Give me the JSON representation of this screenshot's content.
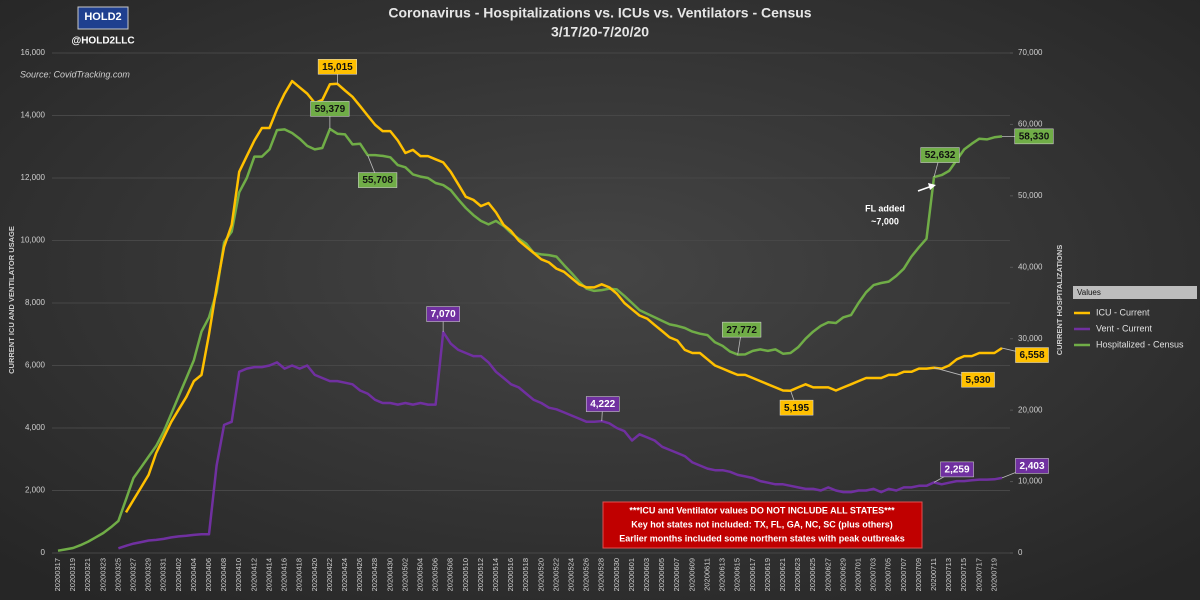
{
  "branding": {
    "logo": "HOLD2",
    "handle": "@HOLD2LLC"
  },
  "chart_data": {
    "type": "line",
    "title": "Coronavirus - Hospitalizations vs. ICUs vs. Ventilators - Census",
    "subtitle": "3/17/20-7/20/20",
    "source": "Source: CovidTracking.com",
    "y_label": "CURRENT ICU AND VENTILATOR USAGE",
    "y2_label": "CURRENT HOSPITALIZATIONS",
    "legend_title": "Values",
    "legend": "right",
    "grid": true,
    "annotations": [
      "FL added",
      "~7,000"
    ],
    "note": [
      "***ICU and Ventilator values DO NOT INCLUDE ALL STATES***",
      "Key hot states not included: TX, FL, GA, NC, SC (plus others)",
      "Earlier months included some northern states with peak outbreaks"
    ],
    "categories": [
      "20200317",
      null,
      "20200319",
      null,
      "20200321",
      null,
      "20200323",
      null,
      "20200325",
      null,
      "20200327",
      null,
      "20200329",
      null,
      "20200331",
      null,
      "20200402",
      null,
      "20200404",
      null,
      "20200406",
      null,
      "20200408",
      null,
      "20200410",
      null,
      "20200412",
      null,
      "20200414",
      null,
      "20200416",
      null,
      "20200418",
      null,
      "20200420",
      null,
      "20200422",
      null,
      "20200424",
      null,
      "20200426",
      null,
      "20200428",
      null,
      "20200430",
      null,
      "20200502",
      null,
      "20200504",
      null,
      "20200506",
      null,
      "20200508",
      null,
      "20200510",
      null,
      "20200512",
      null,
      "20200514",
      null,
      "20200516",
      null,
      "20200518",
      null,
      "20200520",
      null,
      "20200522",
      null,
      "20200524",
      null,
      "20200526",
      null,
      "20200528",
      null,
      "20200530",
      null,
      "20200601",
      null,
      "20200603",
      null,
      "20200605",
      null,
      "20200607",
      null,
      "20200609",
      null,
      "20200611",
      null,
      "20200613",
      null,
      "20200615",
      null,
      "20200617",
      null,
      "20200619",
      null,
      "20200621",
      null,
      "20200623",
      null,
      "20200625",
      null,
      "20200627",
      null,
      "20200629",
      null,
      "20200701",
      null,
      "20200703",
      null,
      "20200705",
      null,
      "20200707",
      null,
      "20200709",
      null,
      "20200711",
      null,
      "20200713",
      null,
      "20200715",
      null,
      "20200717",
      null,
      "20200719",
      null
    ],
    "ylim": [
      0,
      16000
    ],
    "yticks": [
      0,
      {
        "value": 2000,
        "label": "2,000"
      },
      {
        "value": 4000,
        "label": "4,000"
      },
      {
        "value": 6000,
        "label": "6,000"
      },
      {
        "value": 8000,
        "label": "8,000"
      },
      {
        "value": 10000,
        "label": "10,000"
      },
      {
        "value": 12000,
        "label": "12,000"
      },
      {
        "value": 14000,
        "label": "14,000"
      },
      {
        "value": 16000,
        "label": "16,000"
      }
    ],
    "y2lim": [
      0,
      70000
    ],
    "y2ticks": [
      0,
      {
        "value": 10000,
        "label": "10,000"
      },
      {
        "value": 20000,
        "label": "20,000"
      },
      {
        "value": 30000,
        "label": "30,000"
      },
      {
        "value": 40000,
        "label": "40,000"
      },
      {
        "value": 50000,
        "label": "50,000"
      },
      {
        "value": 60000,
        "label": "60,000"
      },
      {
        "value": 70000,
        "label": "70,000"
      }
    ],
    "series": [
      {
        "name": "ICU - Current",
        "color": "#ffc000",
        "label_text": "#111111",
        "values": [
          null,
          null,
          null,
          null,
          null,
          null,
          null,
          null,
          null,
          1300,
          1700,
          2100,
          2500,
          3200,
          3700,
          4200,
          4600,
          5000,
          5500,
          5700,
          7000,
          8500,
          9800,
          10500,
          12200,
          12700,
          13200,
          13600,
          13600,
          14200,
          14700,
          15100,
          14900,
          14700,
          14400,
          14500,
          15000,
          15015,
          14800,
          14600,
          14300,
          14000,
          13700,
          13500,
          13500,
          13200,
          12800,
          12900,
          12700,
          12700,
          12600,
          12500,
          12200,
          11800,
          11400,
          11300,
          11100,
          11200,
          10900,
          10500,
          10300,
          10000,
          9800,
          9600,
          9400,
          9300,
          9100,
          9000,
          8800,
          8600,
          8500,
          8500,
          8600,
          8500,
          8300,
          8000,
          7800,
          7600,
          7500,
          7300,
          7100,
          6900,
          6800,
          6500,
          6400,
          6400,
          6200,
          6000,
          5900,
          5800,
          5700,
          5700,
          5600,
          5500,
          5400,
          5300,
          5200,
          5195,
          5300,
          5400,
          5300,
          5300,
          5300,
          5200,
          5300,
          5400,
          5500,
          5600,
          5600,
          5600,
          5700,
          5700,
          5800,
          5800,
          5900,
          5900,
          5930,
          5900,
          6000,
          6200,
          6300,
          6300,
          6400,
          6400,
          6400,
          6558
        ],
        "value_labels": {
          "37": "15,015",
          "97": "5,195",
          "116": "5,930",
          "125": "6,558"
        }
      },
      {
        "name": "Vent - Current",
        "color": "#7030a0",
        "label_text": "#ffffff",
        "values": [
          null,
          null,
          null,
          null,
          null,
          null,
          null,
          null,
          150,
          230,
          300,
          350,
          400,
          420,
          450,
          500,
          530,
          550,
          580,
          600,
          600,
          2800,
          4100,
          4200,
          5800,
          5900,
          5950,
          5950,
          6000,
          6100,
          5900,
          6000,
          5900,
          6000,
          5700,
          5600,
          5500,
          5500,
          5450,
          5400,
          5200,
          5100,
          4900,
          4800,
          4800,
          4750,
          4800,
          4750,
          4800,
          4750,
          4750,
          7070,
          6700,
          6500,
          6400,
          6300,
          6300,
          6100,
          5800,
          5600,
          5400,
          5300,
          5100,
          4900,
          4800,
          4650,
          4600,
          4500,
          4400,
          4300,
          4200,
          4200,
          4222,
          4150,
          4000,
          3900,
          3600,
          3800,
          3700,
          3600,
          3400,
          3300,
          3200,
          3100,
          2900,
          2800,
          2700,
          2650,
          2650,
          2600,
          2500,
          2450,
          2400,
          2300,
          2250,
          2200,
          2200,
          2150,
          2100,
          2050,
          2050,
          2000,
          2100,
          2000,
          1950,
          1950,
          2000,
          2000,
          2050,
          1950,
          2050,
          2000,
          2100,
          2100,
          2150,
          2150,
          2259,
          2200,
          2250,
          2300,
          2300,
          2330,
          2350,
          2350,
          2360,
          2403
        ],
        "value_labels": {
          "51": "7,070",
          "72": "4,222",
          "116": "2,259",
          "125": "2,403"
        }
      },
      {
        "name": "Hospitalized - Census",
        "color": "#70ad47",
        "label_text": "#111111",
        "axis": "y2",
        "values": [
          325,
          500,
          700,
          1100,
          1600,
          2200,
          2800,
          3600,
          4500,
          7500,
          10500,
          12000,
          13500,
          15000,
          17000,
          19500,
          22000,
          24500,
          27000,
          31000,
          33000,
          36500,
          43500,
          45000,
          50500,
          52500,
          55500,
          55500,
          56500,
          59200,
          59300,
          58800,
          58000,
          57000,
          56500,
          56700,
          59379,
          58700,
          58600,
          57200,
          57300,
          55708,
          55700,
          55600,
          55400,
          54300,
          54000,
          53000,
          52700,
          52500,
          51800,
          51500,
          50800,
          49500,
          48300,
          47300,
          46500,
          46000,
          46500,
          45800,
          44800,
          44000,
          43300,
          42000,
          41800,
          41700,
          41500,
          40300,
          39200,
          38000,
          37000,
          36700,
          36800,
          37000,
          36900,
          36000,
          35000,
          34000,
          33500,
          33000,
          32500,
          32000,
          31800,
          31500,
          31000,
          30700,
          30500,
          29500,
          29000,
          28200,
          27772,
          27800,
          28300,
          28500,
          28300,
          28500,
          27900,
          28000,
          28800,
          30000,
          31000,
          31800,
          32300,
          32200,
          33000,
          33300,
          35000,
          36500,
          37500,
          37800,
          38000,
          38800,
          39800,
          41500,
          42800,
          44000,
          52632,
          52900,
          53500,
          55000,
          56500,
          57300,
          58000,
          57900,
          58200,
          58330
        ],
        "value_labels": {
          "36": "59,379",
          "41": "55,708",
          "90": "27,772",
          "116": "52,632",
          "125": "58,330"
        }
      }
    ]
  }
}
